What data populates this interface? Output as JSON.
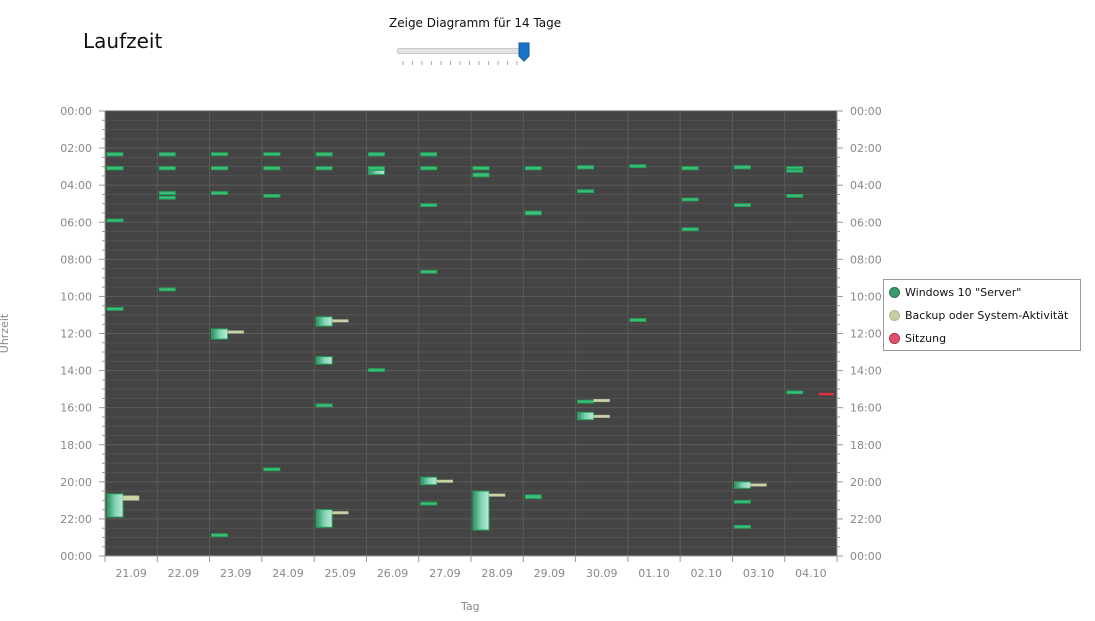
{
  "header": {
    "title": "Laufzeit",
    "slider_label": "Zeige Diagramm für 14 Tage",
    "slider_value": 14,
    "slider_max": 14
  },
  "colors": {
    "plot_bg": "#444444",
    "windows": "#3dbf7a",
    "backup": "#c8d3a8",
    "session": "#e0303d",
    "grid": "#555555"
  },
  "chart_data": {
    "type": "bar",
    "xlabel": "Tag",
    "ylabel": "Uhrzeit",
    "categories": [
      "21.09",
      "22.09",
      "23.09",
      "24.09",
      "25.09",
      "26.09",
      "27.09",
      "28.09",
      "29.09",
      "30.09",
      "01.10",
      "02.10",
      "03.10",
      "04.10"
    ],
    "y_ticks": [
      "00:00",
      "02:00",
      "04:00",
      "06:00",
      "08:00",
      "10:00",
      "12:00",
      "14:00",
      "16:00",
      "18:00",
      "20:00",
      "22:00",
      "00:00"
    ],
    "ylim_hours": [
      0,
      24
    ],
    "legend_placement": "right",
    "legend": [
      {
        "name": "Windows 10 \"Server\"",
        "key": "windows"
      },
      {
        "name": "Backup oder System-Aktivität",
        "key": "backup"
      },
      {
        "name": "Sitzung",
        "key": "session"
      }
    ],
    "series": [
      {
        "name": "Windows 10 \"Server\"",
        "key": "windows",
        "intervals": [
          {
            "day": 0,
            "start": 2.25,
            "end": 2.42
          },
          {
            "day": 0,
            "start": 3.0,
            "end": 3.17
          },
          {
            "day": 0,
            "start": 5.83,
            "end": 5.97
          },
          {
            "day": 0,
            "start": 10.6,
            "end": 10.75
          },
          {
            "day": 0,
            "start": 20.65,
            "end": 21.9
          },
          {
            "day": 1,
            "start": 2.25,
            "end": 2.42
          },
          {
            "day": 1,
            "start": 3.0,
            "end": 3.17
          },
          {
            "day": 1,
            "start": 4.35,
            "end": 4.5
          },
          {
            "day": 1,
            "start": 4.6,
            "end": 4.75
          },
          {
            "day": 1,
            "start": 9.55,
            "end": 9.7
          },
          {
            "day": 2,
            "start": 2.25,
            "end": 2.4
          },
          {
            "day": 2,
            "start": 3.0,
            "end": 3.17
          },
          {
            "day": 2,
            "start": 4.35,
            "end": 4.5
          },
          {
            "day": 2,
            "start": 11.75,
            "end": 12.3
          },
          {
            "day": 2,
            "start": 22.8,
            "end": 22.95
          },
          {
            "day": 3,
            "start": 2.25,
            "end": 2.4
          },
          {
            "day": 3,
            "start": 3.0,
            "end": 3.17
          },
          {
            "day": 3,
            "start": 4.5,
            "end": 4.65
          },
          {
            "day": 3,
            "start": 19.25,
            "end": 19.4
          },
          {
            "day": 4,
            "start": 2.25,
            "end": 2.42
          },
          {
            "day": 4,
            "start": 3.0,
            "end": 3.17
          },
          {
            "day": 4,
            "start": 11.1,
            "end": 11.6
          },
          {
            "day": 4,
            "start": 13.25,
            "end": 13.65
          },
          {
            "day": 4,
            "start": 15.8,
            "end": 15.95
          },
          {
            "day": 4,
            "start": 21.5,
            "end": 22.45
          },
          {
            "day": 5,
            "start": 2.25,
            "end": 2.42
          },
          {
            "day": 5,
            "start": 3.0,
            "end": 3.17
          },
          {
            "day": 5,
            "start": 3.2,
            "end": 3.42
          },
          {
            "day": 5,
            "start": 13.9,
            "end": 14.05
          },
          {
            "day": 6,
            "start": 2.25,
            "end": 2.42
          },
          {
            "day": 6,
            "start": 3.0,
            "end": 3.17
          },
          {
            "day": 6,
            "start": 5.0,
            "end": 5.15
          },
          {
            "day": 6,
            "start": 8.6,
            "end": 8.75
          },
          {
            "day": 6,
            "start": 19.75,
            "end": 20.15
          },
          {
            "day": 6,
            "start": 21.1,
            "end": 21.25
          },
          {
            "day": 7,
            "start": 3.0,
            "end": 3.17
          },
          {
            "day": 7,
            "start": 3.35,
            "end": 3.55
          },
          {
            "day": 7,
            "start": 20.5,
            "end": 22.6
          },
          {
            "day": 8,
            "start": 3.0,
            "end": 3.17
          },
          {
            "day": 8,
            "start": 5.4,
            "end": 5.6
          },
          {
            "day": 8,
            "start": 20.7,
            "end": 20.9
          },
          {
            "day": 9,
            "start": 2.95,
            "end": 3.12
          },
          {
            "day": 9,
            "start": 4.25,
            "end": 4.4
          },
          {
            "day": 9,
            "start": 15.6,
            "end": 15.75
          },
          {
            "day": 9,
            "start": 16.25,
            "end": 16.65
          },
          {
            "day": 10,
            "start": 2.9,
            "end": 3.05
          },
          {
            "day": 10,
            "start": 11.2,
            "end": 11.35
          },
          {
            "day": 11,
            "start": 3.0,
            "end": 3.17
          },
          {
            "day": 11,
            "start": 4.7,
            "end": 4.85
          },
          {
            "day": 11,
            "start": 6.3,
            "end": 6.45
          },
          {
            "day": 12,
            "start": 2.95,
            "end": 3.12
          },
          {
            "day": 12,
            "start": 5.0,
            "end": 5.15
          },
          {
            "day": 12,
            "start": 20.0,
            "end": 20.35
          },
          {
            "day": 12,
            "start": 21.0,
            "end": 21.15
          },
          {
            "day": 12,
            "start": 22.35,
            "end": 22.5
          },
          {
            "day": 13,
            "start": 3.0,
            "end": 3.12
          },
          {
            "day": 13,
            "start": 3.17,
            "end": 3.3
          },
          {
            "day": 13,
            "start": 4.5,
            "end": 4.65
          },
          {
            "day": 13,
            "start": 15.1,
            "end": 15.25
          }
        ]
      },
      {
        "name": "Backup oder System-Aktivität",
        "key": "backup",
        "intervals": [
          {
            "day": 0,
            "start": 20.75,
            "end": 21.0
          },
          {
            "day": 2,
            "start": 11.85,
            "end": 11.95
          },
          {
            "day": 4,
            "start": 11.25,
            "end": 11.35
          },
          {
            "day": 4,
            "start": 21.6,
            "end": 21.7
          },
          {
            "day": 6,
            "start": 19.9,
            "end": 20.0
          },
          {
            "day": 7,
            "start": 20.65,
            "end": 20.75
          },
          {
            "day": 9,
            "start": 15.55,
            "end": 15.65
          },
          {
            "day": 9,
            "start": 16.4,
            "end": 16.5
          },
          {
            "day": 12,
            "start": 20.1,
            "end": 20.2
          }
        ]
      },
      {
        "name": "Sitzung",
        "key": "session",
        "intervals": [
          {
            "day": 13,
            "start": 15.2,
            "end": 15.3
          }
        ]
      }
    ]
  }
}
